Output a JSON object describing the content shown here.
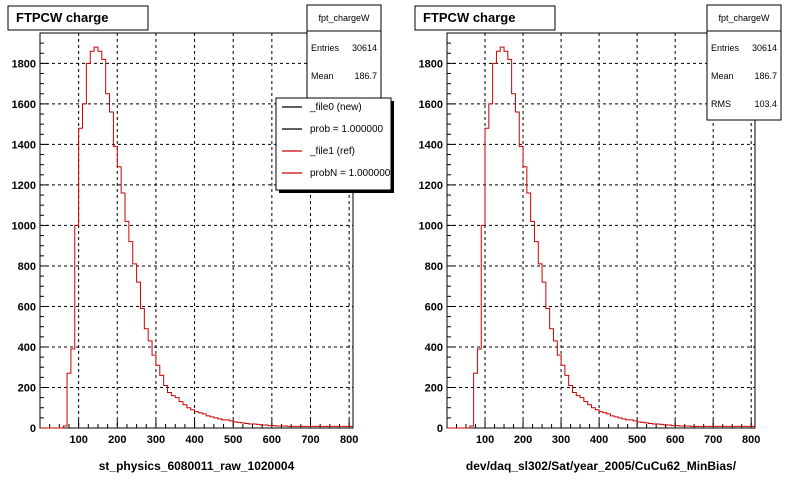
{
  "chart_data": [
    {
      "type": "histogram",
      "title": "FTPCW charge",
      "xlabel": "st_physics_6080011_raw_1020004",
      "ylabel": "",
      "xlim": [
        0,
        810
      ],
      "ylim": [
        0,
        1950
      ],
      "xticks": [
        100,
        200,
        300,
        400,
        500,
        600,
        700,
        800
      ],
      "yticks": [
        0,
        200,
        400,
        600,
        800,
        1000,
        1200,
        1400,
        1600,
        1800
      ],
      "grid": true,
      "stats": {
        "name": "fpt_chargeW",
        "entries_label": "Entries",
        "entries": "30614",
        "mean_label": "Mean",
        "mean": "186.7"
      },
      "legend": {
        "placement": "top-right",
        "entries": [
          {
            "label": "_file0 (new)",
            "color": "#000000"
          },
          {
            "label": "prob = 1.000000",
            "color": "#000000"
          },
          {
            "label": "_file1 (ref)",
            "color": "#cc0000"
          },
          {
            "label": "probN = 1.000000",
            "color": "#cc0000"
          }
        ]
      },
      "series": [
        {
          "color": "#cc0000",
          "bin_width": 10,
          "bin_start": 0,
          "values": [
            0,
            0,
            0,
            0,
            0,
            0,
            10,
            270,
            390,
            1000,
            1480,
            1600,
            1800,
            1860,
            1880,
            1860,
            1820,
            1650,
            1560,
            1390,
            1290,
            1160,
            1020,
            920,
            810,
            720,
            590,
            490,
            430,
            360,
            310,
            260,
            210,
            175,
            160,
            150,
            130,
            115,
            100,
            90,
            80,
            75,
            70,
            60,
            55,
            50,
            45,
            40,
            40,
            35,
            30,
            28,
            25,
            22,
            20,
            20,
            18,
            15,
            15,
            12,
            12,
            10,
            10,
            10,
            8,
            8,
            8,
            8,
            8,
            8,
            8,
            8,
            8,
            8,
            8,
            8,
            8,
            8,
            8,
            8,
            8
          ]
        }
      ]
    },
    {
      "type": "histogram",
      "title": "FTPCW charge",
      "xlabel": "dev/daq_sl302/Sat/year_2005/CuCu62_MinBias/",
      "ylabel": "",
      "xlim": [
        0,
        810
      ],
      "ylim": [
        0,
        1950
      ],
      "xticks": [
        100,
        200,
        300,
        400,
        500,
        600,
        700,
        800
      ],
      "yticks": [
        0,
        200,
        400,
        600,
        800,
        1000,
        1200,
        1400,
        1600,
        1800
      ],
      "grid": true,
      "stats": {
        "name": "fpt_chargeW",
        "entries_label": "Entries",
        "entries": "30614",
        "mean_label": "Mean",
        "mean": "186.7",
        "rms_label": "RMS",
        "rms": "103.4"
      },
      "series": [
        {
          "color": "#cc0000",
          "bin_width": 10,
          "bin_start": 0,
          "values": [
            0,
            0,
            0,
            0,
            0,
            0,
            10,
            270,
            390,
            1000,
            1480,
            1600,
            1800,
            1860,
            1880,
            1860,
            1820,
            1650,
            1560,
            1390,
            1290,
            1160,
            1020,
            920,
            810,
            720,
            590,
            490,
            430,
            360,
            310,
            260,
            210,
            175,
            160,
            150,
            130,
            115,
            100,
            90,
            80,
            75,
            70,
            60,
            55,
            50,
            45,
            40,
            40,
            35,
            30,
            28,
            25,
            22,
            20,
            20,
            18,
            15,
            15,
            12,
            12,
            10,
            10,
            10,
            8,
            8,
            8,
            8,
            8,
            8,
            8,
            8,
            8,
            8,
            8,
            8,
            8,
            8,
            8,
            8,
            8
          ]
        }
      ]
    }
  ]
}
